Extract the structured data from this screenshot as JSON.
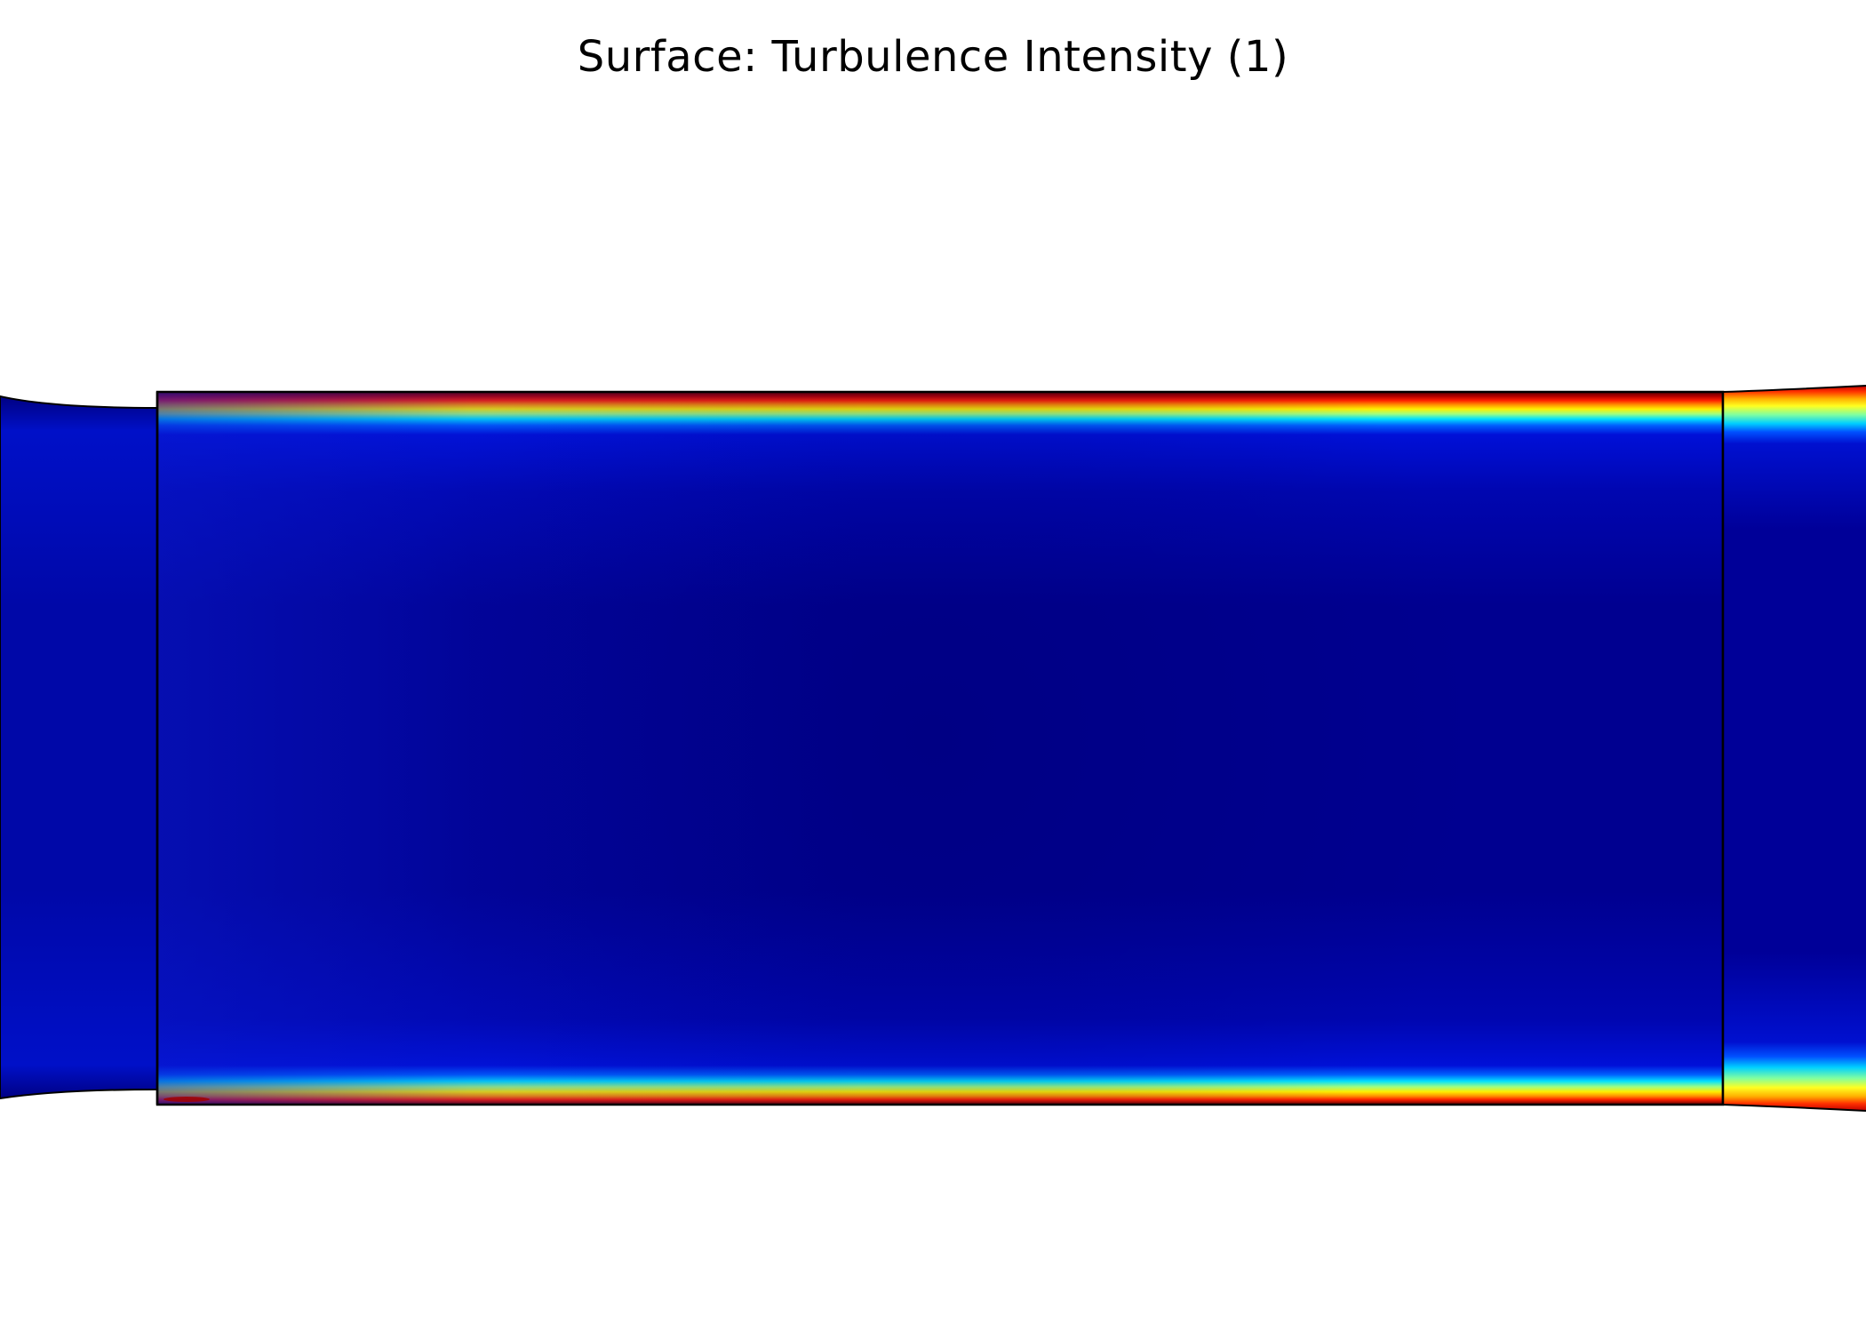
{
  "plot": {
    "title": "Surface: Turbulence Intensity (1)",
    "colormap": {
      "name": "rainbow-jet",
      "stops": [
        "#000080",
        "#0000cd",
        "#00bfff",
        "#7fffd4",
        "#ffff00",
        "#ff8000",
        "#ff0000",
        "#800000"
      ]
    },
    "colors": {
      "background": "#ffffff",
      "domain_core": "#000088",
      "domain_inlet": "#0a1ab8",
      "boundary_line": "#000000"
    }
  }
}
